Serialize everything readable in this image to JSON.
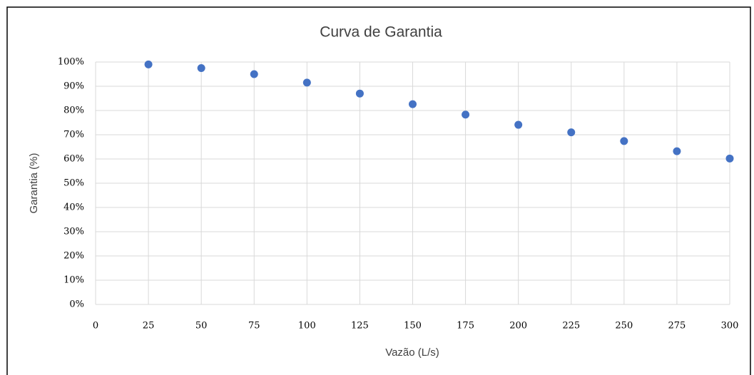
{
  "chart_data": {
    "type": "scatter",
    "title": "Curva de Garantia",
    "x_label": "Vazão (L/s)",
    "y_label": "Garantia (%)",
    "color": "#4472c4",
    "grid": true,
    "x": [
      25,
      50,
      75,
      100,
      125,
      150,
      175,
      200,
      225,
      250,
      275,
      300
    ],
    "values": [
      99,
      97.5,
      95,
      91.5,
      87,
      82.6,
      78.3,
      74.1,
      71,
      67.4,
      63.2,
      60.2
    ],
    "xlim": [
      0,
      300
    ],
    "xticks": [
      0,
      25,
      50,
      75,
      100,
      125,
      150,
      175,
      200,
      225,
      250,
      275,
      300
    ],
    "ylim": [
      0,
      100
    ],
    "yticks": [
      {
        "value": 0,
        "label": "0%"
      },
      {
        "value": 10,
        "label": "10%"
      },
      {
        "value": 20,
        "label": "20%"
      },
      {
        "value": 30,
        "label": "30%"
      },
      {
        "value": 40,
        "label": "40%"
      },
      {
        "value": 50,
        "label": "50%"
      },
      {
        "value": 60,
        "label": "60%"
      },
      {
        "value": 70,
        "label": "70%"
      },
      {
        "value": 80,
        "label": "80%"
      },
      {
        "value": 90,
        "label": "90%"
      },
      {
        "value": 100,
        "label": "100%"
      }
    ]
  }
}
